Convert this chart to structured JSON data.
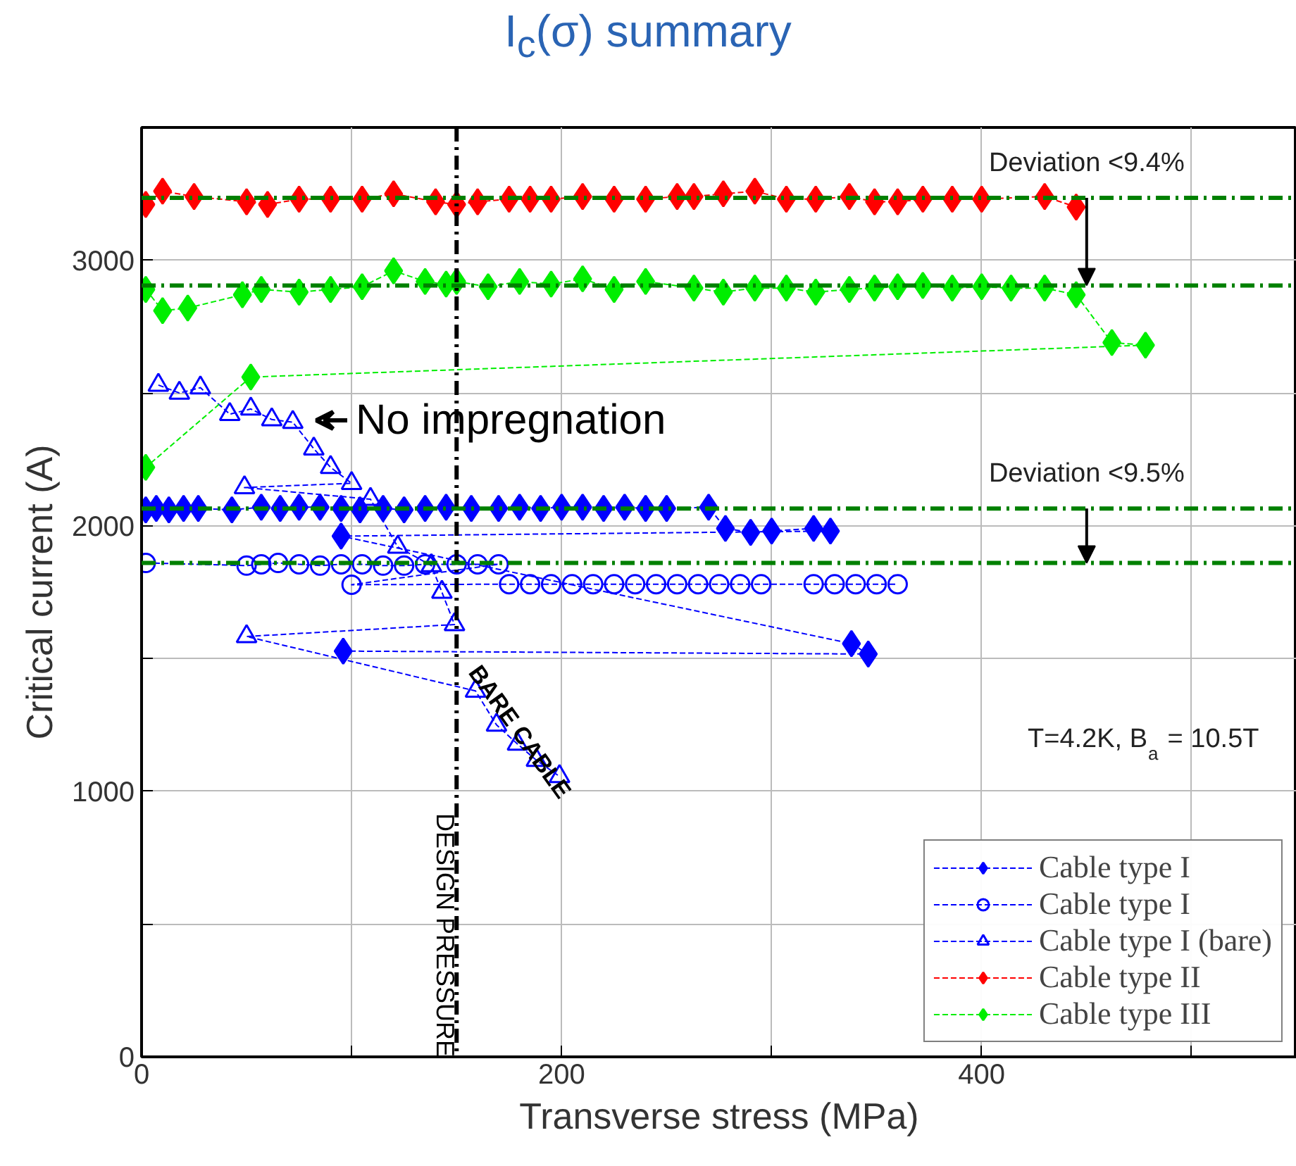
{
  "chart_data": {
    "type": "line",
    "title": "I$_{c}$(σ) summary",
    "xlabel": "Transverse stress (MPa)",
    "ylabel": "Critical current (A)",
    "xlim": [
      0,
      550
    ],
    "ylim": [
      0,
      3500
    ],
    "xticks": [
      0,
      {
        "value": 100,
        "label": null
      },
      200,
      {
        "value": 300,
        "label": null
      },
      400,
      {
        "value": 500,
        "label": null
      }
    ],
    "yticks": [
      0,
      {
        "value": 500,
        "label": null
      },
      1000,
      {
        "value": 1500,
        "label": null
      },
      2000,
      {
        "value": 2500,
        "label": null
      },
      3000
    ],
    "grid": true,
    "legend": "bottom right",
    "line_style": "dashed",
    "series": [
      {
        "name": "Cable type I",
        "color": "#0000ff",
        "marker": "diamond",
        "x": [
          2,
          7,
          13,
          20,
          27,
          43,
          57,
          66,
          75,
          85,
          95,
          104,
          115,
          125,
          135,
          145,
          157,
          170,
          180,
          190,
          200,
          210,
          220,
          230,
          240,
          250,
          270,
          278,
          290,
          300,
          320,
          328,
          95,
          338,
          346,
          96
        ],
        "values": [
          2060,
          2065,
          2060,
          2065,
          2065,
          2060,
          2070,
          2065,
          2070,
          2070,
          2065,
          2060,
          2065,
          2060,
          2065,
          2070,
          2065,
          2065,
          2070,
          2065,
          2070,
          2070,
          2065,
          2070,
          2065,
          2065,
          2070,
          1990,
          1975,
          1980,
          1990,
          1980,
          1961,
          1556,
          1517,
          1528
        ]
      },
      {
        "name": "Cable type I",
        "color": "#0000ff",
        "marker": "circle",
        "x": [
          2,
          50,
          57,
          65,
          75,
          85,
          95,
          105,
          115,
          125,
          135,
          150,
          160,
          170,
          100,
          175,
          185,
          195,
          205,
          215,
          225,
          235,
          245,
          255,
          265,
          275,
          285,
          295,
          320,
          330,
          340,
          350,
          360
        ],
        "values": [
          1860,
          1850,
          1855,
          1860,
          1855,
          1850,
          1855,
          1855,
          1850,
          1850,
          1855,
          1855,
          1855,
          1855,
          1778,
          1780,
          1780,
          1780,
          1780,
          1780,
          1780,
          1780,
          1780,
          1780,
          1780,
          1780,
          1780,
          1780,
          1780,
          1780,
          1780,
          1780,
          1780
        ]
      },
      {
        "name": "Cable type I (bare)",
        "color": "#0000ff",
        "marker": "triangle",
        "x": [
          8,
          18,
          28,
          42,
          52,
          62,
          72,
          82,
          90,
          100,
          49,
          109,
          122,
          138,
          143,
          149,
          50,
          159,
          169,
          179,
          188,
          199
        ],
        "values": [
          2530,
          2500,
          2520,
          2420,
          2440,
          2400,
          2390,
          2290,
          2220,
          2160,
          2144,
          2100,
          1920,
          1850,
          1750,
          1628,
          1583,
          1378,
          1250,
          1178,
          1117,
          1056
        ]
      },
      {
        "name": "Cable type II",
        "color": "#ff0000",
        "marker": "diamond",
        "x": [
          2,
          10,
          25,
          50,
          60,
          75,
          90,
          105,
          120,
          140,
          150,
          160,
          175,
          185,
          195,
          210,
          225,
          240,
          255,
          263,
          277,
          292,
          307,
          321,
          337,
          349,
          360,
          372,
          386,
          400,
          430,
          445
        ],
        "values": [
          3210,
          3260,
          3240,
          3220,
          3210,
          3230,
          3230,
          3230,
          3250,
          3220,
          3210,
          3220,
          3230,
          3230,
          3230,
          3240,
          3230,
          3230,
          3240,
          3240,
          3250,
          3260,
          3230,
          3230,
          3240,
          3220,
          3220,
          3230,
          3230,
          3230,
          3240,
          3200
        ]
      },
      {
        "name": "Cable type III",
        "color": "#00ee00",
        "marker": "diamond",
        "x": [
          2,
          10,
          22,
          48,
          57,
          75,
          90,
          105,
          120,
          135,
          145,
          150,
          165,
          180,
          195,
          210,
          225,
          240,
          263,
          277,
          292,
          307,
          321,
          337,
          349,
          360,
          372,
          386,
          400,
          414,
          430,
          445,
          462,
          478,
          52,
          2
        ],
        "values": [
          2890,
          2810,
          2820,
          2870,
          2890,
          2880,
          2890,
          2900,
          2960,
          2920,
          2910,
          2920,
          2900,
          2920,
          2910,
          2930,
          2890,
          2920,
          2895,
          2880,
          2895,
          2895,
          2880,
          2890,
          2895,
          2900,
          2905,
          2895,
          2900,
          2895,
          2895,
          2870,
          2690,
          2680,
          2560,
          2220
        ]
      }
    ],
    "ref_lines": [
      {
        "axis": "x",
        "value": 150,
        "label": "DESIGN PRESSURE",
        "color": "#000000",
        "line_style": "dashdot"
      },
      {
        "axis": "y",
        "value": 3235,
        "label": null,
        "color": "#008000",
        "line_style": "dashdot"
      },
      {
        "axis": "y",
        "value": 2905,
        "label": null,
        "color": "#008000",
        "line_style": "dashdot"
      },
      {
        "axis": "y",
        "value": 2065,
        "label": null,
        "color": "#008000",
        "line_style": "dashdot"
      },
      {
        "axis": "y",
        "value": 1860,
        "label": null,
        "color": "#008000",
        "line_style": "dashdot"
      }
    ],
    "annotations": [
      "No impregnation",
      "BARE CABLE",
      {
        "text": "Deviation <9.4%",
        "x": 450,
        "y": 3235
      },
      {
        "text": "Deviation <9.5%",
        "x": 450,
        "y": 2065
      },
      "T=4.2K, B$_{a}$ = 10.5T"
    ]
  }
}
